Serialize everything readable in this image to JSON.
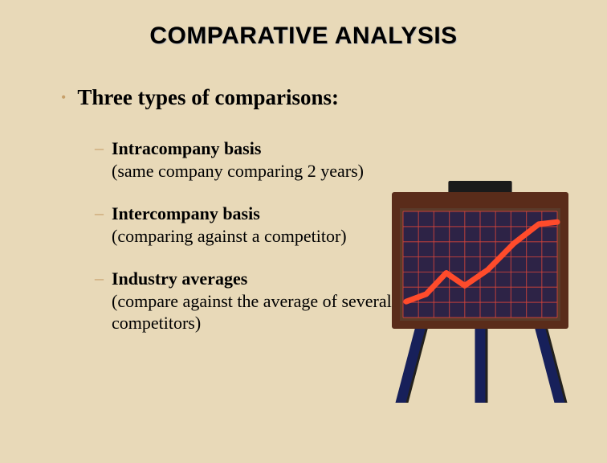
{
  "title": "COMPARATIVE ANALYSIS",
  "main_bullet": "Three types of comparisons:",
  "items": [
    {
      "title": "Intracompany basis",
      "desc": "(same company comparing 2 years)"
    },
    {
      "title": "Intercompany basis",
      "desc": "(comparing against a competitor)"
    },
    {
      "title": "Industry averages",
      "desc": "(compare against the average of several competitors)"
    }
  ],
  "styling": {
    "background_color": "#e8d9b8",
    "title_font": "Arial",
    "title_fontsize": 30,
    "title_shadow": "#bbbbbb",
    "body_font": "Times New Roman",
    "main_fontsize": 27,
    "sub_fontsize": 22,
    "bullet_color": "#c7a06a"
  },
  "chart": {
    "type": "line",
    "frame_color": "#5a2c1a",
    "inner_border_color": "#5a3b2a",
    "top_strip_color": "#1a1a1a",
    "grid_background": "#2d2346",
    "grid_line_color": "#d9453a",
    "grid_cols": 10,
    "grid_rows": 7,
    "line_color": "#ff4b2b",
    "line_width": 7,
    "line_points": [
      [
        0.02,
        0.85
      ],
      [
        0.15,
        0.78
      ],
      [
        0.28,
        0.58
      ],
      [
        0.4,
        0.7
      ],
      [
        0.55,
        0.55
      ],
      [
        0.72,
        0.3
      ],
      [
        0.88,
        0.12
      ],
      [
        1.0,
        0.1
      ]
    ],
    "easel_leg_color": "#17205a",
    "easel_leg_shadow": "#000000"
  }
}
